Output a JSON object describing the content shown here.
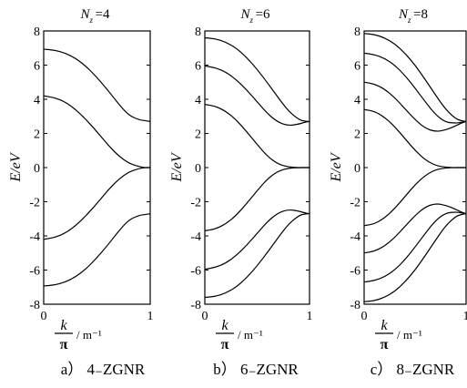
{
  "chart_data": [
    {
      "type": "line",
      "title": "N_z=4",
      "title_main": "N",
      "title_sub": "z",
      "title_rest": "=4",
      "caption": "a） 4₋ZGNR",
      "ylabel": "E/eV",
      "xlabel_num": "k",
      "xlabel_den": "π",
      "xlabel_unit": "/ m⁻¹",
      "xlim": [
        0,
        1
      ],
      "ylim": [
        -8,
        8
      ],
      "x_ticks": [
        "0",
        "1"
      ],
      "y_ticks": [
        "8",
        "6",
        "4",
        "2",
        "0",
        "-2",
        "-4",
        "-6",
        "-8"
      ],
      "series": [
        {
          "x": [
            0,
            0.1,
            0.2,
            0.3,
            0.4,
            0.5,
            0.6,
            0.7,
            0.8,
            0.9,
            0.95,
            1.0
          ],
          "values": [
            6.93,
            6.88,
            6.71,
            6.4,
            5.92,
            5.28,
            4.55,
            3.75,
            3.05,
            2.79,
            2.75,
            2.7
          ]
        },
        {
          "x": [
            0,
            0.1,
            0.2,
            0.3,
            0.4,
            0.5,
            0.6,
            0.7,
            0.8,
            0.9,
            0.95,
            1.0
          ],
          "values": [
            4.2,
            4.1,
            3.85,
            3.4,
            2.8,
            2.1,
            1.35,
            0.7,
            0.25,
            0.05,
            0.0,
            0.0
          ]
        },
        {
          "x": [
            0,
            0.1,
            0.2,
            0.3,
            0.4,
            0.5,
            0.6,
            0.7,
            0.8,
            0.9,
            0.95,
            1.0
          ],
          "values": [
            -4.2,
            -4.1,
            -3.85,
            -3.4,
            -2.8,
            -2.1,
            -1.35,
            -0.7,
            -0.25,
            -0.05,
            0.0,
            0.0
          ]
        },
        {
          "x": [
            0,
            0.1,
            0.2,
            0.3,
            0.4,
            0.5,
            0.6,
            0.7,
            0.8,
            0.9,
            0.95,
            1.0
          ],
          "values": [
            -6.93,
            -6.88,
            -6.71,
            -6.4,
            -5.92,
            -5.28,
            -4.55,
            -3.75,
            -3.05,
            -2.79,
            -2.75,
            -2.7
          ]
        }
      ]
    },
    {
      "type": "line",
      "title": "N_z=6",
      "title_main": "N",
      "title_sub": "z",
      "title_rest": "=6",
      "caption": "b） 6₋ZGNR",
      "ylabel": "E/eV",
      "xlabel_num": "k",
      "xlabel_den": "π",
      "xlabel_unit": "/ m⁻¹",
      "xlim": [
        0,
        1
      ],
      "ylim": [
        -8,
        8
      ],
      "x_ticks": [
        "0",
        "1"
      ],
      "y_ticks": [
        "8",
        "6",
        "4",
        "2",
        "0",
        "-2",
        "-4",
        "-6",
        "-8"
      ],
      "series": [
        {
          "x": [
            0,
            0.1,
            0.2,
            0.3,
            0.4,
            0.5,
            0.6,
            0.7,
            0.8,
            0.9,
            0.95,
            1.0
          ],
          "values": [
            7.6,
            7.55,
            7.35,
            7.0,
            6.45,
            5.75,
            4.95,
            4.1,
            3.3,
            2.8,
            2.72,
            2.7
          ]
        },
        {
          "x": [
            0,
            0.1,
            0.2,
            0.3,
            0.4,
            0.5,
            0.6,
            0.7,
            0.8,
            0.9,
            0.95,
            1.0
          ],
          "values": [
            5.95,
            5.85,
            5.6,
            5.15,
            4.55,
            3.85,
            3.15,
            2.65,
            2.45,
            2.55,
            2.65,
            2.7
          ]
        },
        {
          "x": [
            0,
            0.1,
            0.2,
            0.3,
            0.4,
            0.5,
            0.6,
            0.7,
            0.8,
            0.9,
            0.95,
            1.0
          ],
          "values": [
            3.7,
            3.6,
            3.3,
            2.8,
            2.1,
            1.35,
            0.65,
            0.2,
            0.03,
            0.0,
            0.0,
            0.0
          ]
        },
        {
          "x": [
            0,
            0.1,
            0.2,
            0.3,
            0.4,
            0.5,
            0.6,
            0.7,
            0.8,
            0.9,
            0.95,
            1.0
          ],
          "values": [
            -3.7,
            -3.6,
            -3.3,
            -2.8,
            -2.1,
            -1.35,
            -0.65,
            -0.2,
            -0.03,
            0.0,
            0.0,
            0.0
          ]
        },
        {
          "x": [
            0,
            0.1,
            0.2,
            0.3,
            0.4,
            0.5,
            0.6,
            0.7,
            0.8,
            0.9,
            0.95,
            1.0
          ],
          "values": [
            -5.95,
            -5.85,
            -5.6,
            -5.15,
            -4.55,
            -3.85,
            -3.15,
            -2.65,
            -2.45,
            -2.55,
            -2.65,
            -2.7
          ]
        },
        {
          "x": [
            0,
            0.1,
            0.2,
            0.3,
            0.4,
            0.5,
            0.6,
            0.7,
            0.8,
            0.9,
            0.95,
            1.0
          ],
          "values": [
            -7.6,
            -7.55,
            -7.35,
            -7.0,
            -6.45,
            -5.75,
            -4.95,
            -4.1,
            -3.3,
            -2.8,
            -2.72,
            -2.7
          ]
        }
      ]
    },
    {
      "type": "line",
      "title": "N_z=8",
      "title_main": "N",
      "title_sub": "z",
      "title_rest": "=8",
      "caption": "c） 8₋ZGNR",
      "ylabel": "E/eV",
      "xlabel_num": "k",
      "xlabel_den": "π",
      "xlabel_unit": "/ m⁻¹",
      "xlim": [
        0,
        1
      ],
      "ylim": [
        -8,
        8
      ],
      "x_ticks": [
        "0",
        "1"
      ],
      "y_ticks": [
        "8",
        "6",
        "4",
        "2",
        "0",
        "-2",
        "-4",
        "-6",
        "-8"
      ],
      "series": [
        {
          "x": [
            0,
            0.1,
            0.2,
            0.3,
            0.4,
            0.5,
            0.6,
            0.7,
            0.8,
            0.9,
            0.95,
            1.0
          ],
          "values": [
            7.85,
            7.8,
            7.6,
            7.25,
            6.7,
            6.0,
            5.15,
            4.25,
            3.4,
            2.85,
            2.75,
            2.7
          ]
        },
        {
          "x": [
            0,
            0.1,
            0.2,
            0.3,
            0.4,
            0.5,
            0.6,
            0.7,
            0.8,
            0.9,
            0.95,
            1.0
          ],
          "values": [
            6.7,
            6.62,
            6.4,
            6.0,
            5.4,
            4.65,
            3.85,
            3.1,
            2.65,
            2.6,
            2.65,
            2.7
          ]
        },
        {
          "x": [
            0,
            0.1,
            0.2,
            0.3,
            0.4,
            0.5,
            0.6,
            0.7,
            0.8,
            0.9,
            0.95,
            1.0
          ],
          "values": [
            5.0,
            4.9,
            4.6,
            4.1,
            3.45,
            2.8,
            2.3,
            2.1,
            2.2,
            2.45,
            2.6,
            2.7
          ]
        },
        {
          "x": [
            0,
            0.1,
            0.2,
            0.3,
            0.4,
            0.5,
            0.6,
            0.7,
            0.8,
            0.9,
            0.95,
            1.0
          ],
          "values": [
            3.4,
            3.3,
            2.95,
            2.4,
            1.7,
            1.0,
            0.45,
            0.12,
            0.02,
            0.0,
            0.0,
            0.0
          ]
        },
        {
          "x": [
            0,
            0.1,
            0.2,
            0.3,
            0.4,
            0.5,
            0.6,
            0.7,
            0.8,
            0.9,
            0.95,
            1.0
          ],
          "values": [
            -3.4,
            -3.3,
            -2.95,
            -2.4,
            -1.7,
            -1.0,
            -0.45,
            -0.12,
            -0.02,
            0.0,
            0.0,
            0.0
          ]
        },
        {
          "x": [
            0,
            0.1,
            0.2,
            0.3,
            0.4,
            0.5,
            0.6,
            0.7,
            0.8,
            0.9,
            0.95,
            1.0
          ],
          "values": [
            -5.0,
            -4.9,
            -4.6,
            -4.1,
            -3.45,
            -2.8,
            -2.3,
            -2.1,
            -2.2,
            -2.45,
            -2.6,
            -2.7
          ]
        },
        {
          "x": [
            0,
            0.1,
            0.2,
            0.3,
            0.4,
            0.5,
            0.6,
            0.7,
            0.8,
            0.9,
            0.95,
            1.0
          ],
          "values": [
            -6.7,
            -6.62,
            -6.4,
            -6.0,
            -5.4,
            -4.65,
            -3.85,
            -3.1,
            -2.65,
            -2.6,
            -2.65,
            -2.7
          ]
        },
        {
          "x": [
            0,
            0.1,
            0.2,
            0.3,
            0.4,
            0.5,
            0.6,
            0.7,
            0.8,
            0.9,
            0.95,
            1.0
          ],
          "values": [
            -7.85,
            -7.8,
            -7.6,
            -7.25,
            -6.7,
            -6.0,
            -5.15,
            -4.25,
            -3.4,
            -2.85,
            -2.75,
            -2.7
          ]
        }
      ]
    }
  ]
}
